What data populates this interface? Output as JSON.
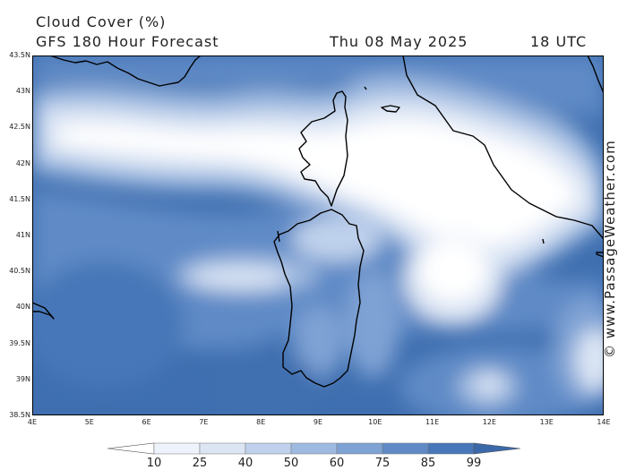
{
  "header": {
    "variable": "Cloud Cover (%)",
    "forecast": "GFS 180 Hour Forecast",
    "date": "Thu 08 May 2025",
    "time": "18 UTC"
  },
  "credit": "© www.PassageWeather.com",
  "map": {
    "lat_labels": [
      "43.5N",
      "43N",
      "42.5N",
      "42N",
      "41.5N",
      "41N",
      "40.5N",
      "40N",
      "39.5N",
      "39N",
      "38.5N"
    ],
    "lon_labels": [
      "4E",
      "5E",
      "6E",
      "7E",
      "8E",
      "9E",
      "10E",
      "11E",
      "12E",
      "13E",
      "14E"
    ],
    "lat_range": [
      38.5,
      43.5
    ],
    "lon_range": [
      4,
      14
    ],
    "islands": [
      "Corsica",
      "Sardinia"
    ]
  },
  "legend": {
    "labels": [
      "10",
      "25",
      "40",
      "50",
      "60",
      "75",
      "85",
      "99"
    ],
    "colors": [
      "#ffffff",
      "#eef3fb",
      "#dbe5f4",
      "#bfd1ec",
      "#9fbae0",
      "#7fa2d4",
      "#5f8ac6",
      "#4777b8",
      "#3a68a8"
    ]
  }
}
